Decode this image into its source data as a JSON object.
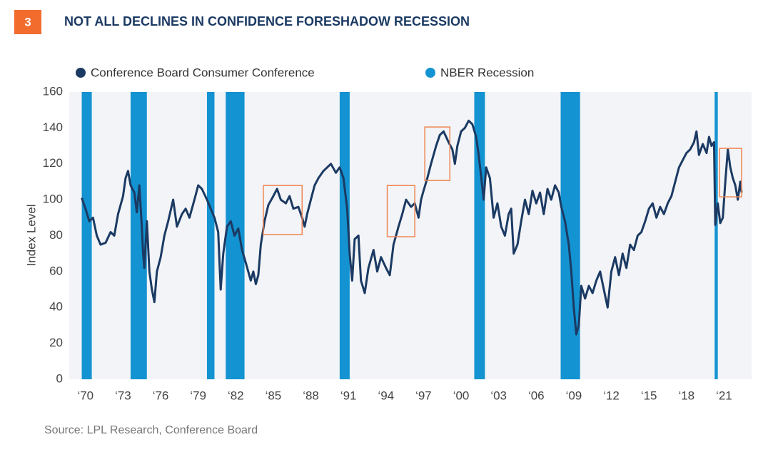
{
  "chart_data": {
    "type": "line",
    "figure_number": "3",
    "title": "NOT ALL DECLINES IN CONFIDENCE FORESHADOW RECESSION",
    "y_label": "Index Level",
    "source": "Source: LPL Research, Conference Board",
    "xlim": [
      1968.7,
      2023.2
    ],
    "ylim": [
      0,
      160
    ],
    "yticks": [
      0,
      20,
      40,
      60,
      80,
      100,
      120,
      140,
      160
    ],
    "xticks": [
      {
        "value": 1970,
        "label": "‘70"
      },
      {
        "value": 1973,
        "label": "‘73"
      },
      {
        "value": 1976,
        "label": "‘76"
      },
      {
        "value": 1979,
        "label": "‘79"
      },
      {
        "value": 1982,
        "label": "‘82"
      },
      {
        "value": 1985,
        "label": "‘85"
      },
      {
        "value": 1988,
        "label": "‘88"
      },
      {
        "value": 1991,
        "label": "‘91"
      },
      {
        "value": 1994,
        "label": "‘94"
      },
      {
        "value": 1997,
        "label": "‘97"
      },
      {
        "value": 2000,
        "label": "‘00"
      },
      {
        "value": 2003,
        "label": "‘03"
      },
      {
        "value": 2006,
        "label": "‘06"
      },
      {
        "value": 2009,
        "label": "‘09"
      },
      {
        "value": 2012,
        "label": "‘12"
      },
      {
        "value": 2015,
        "label": "‘15"
      },
      {
        "value": 2018,
        "label": "‘18"
      },
      {
        "value": 2021,
        "label": "‘21"
      }
    ],
    "grid": false,
    "x": [
      1969.7,
      1970.0,
      1970.3,
      1970.6,
      1970.9,
      1971.2,
      1971.6,
      1972.0,
      1972.3,
      1972.6,
      1973.0,
      1973.2,
      1973.4,
      1973.6,
      1973.9,
      1974.1,
      1974.3,
      1974.5,
      1974.6,
      1974.7,
      1974.9,
      1975.1,
      1975.3,
      1975.5,
      1975.7,
      1976.0,
      1976.3,
      1976.6,
      1977.0,
      1977.3,
      1977.7,
      1978.0,
      1978.3,
      1978.7,
      1979.0,
      1979.3,
      1979.7,
      1980.0,
      1980.3,
      1980.6,
      1980.8,
      1981.0,
      1981.3,
      1981.6,
      1981.9,
      1982.2,
      1982.5,
      1982.8,
      1983.0,
      1983.2,
      1983.4,
      1983.6,
      1983.8,
      1984.0,
      1984.3,
      1984.6,
      1985.0,
      1985.3,
      1985.6,
      1986.0,
      1986.3,
      1986.6,
      1987.0,
      1987.3,
      1987.5,
      1987.7,
      1988.0,
      1988.3,
      1988.6,
      1989.0,
      1989.3,
      1989.6,
      1990.0,
      1990.3,
      1990.6,
      1990.9,
      1991.1,
      1991.3,
      1991.5,
      1991.8,
      1992.0,
      1992.3,
      1992.6,
      1993.0,
      1993.3,
      1993.6,
      1994.0,
      1994.3,
      1994.6,
      1995.0,
      1995.3,
      1995.6,
      1996.0,
      1996.3,
      1996.6,
      1996.8,
      1997.0,
      1997.3,
      1997.6,
      1998.0,
      1998.3,
      1998.6,
      1999.0,
      1999.3,
      1999.5,
      1999.7,
      2000.0,
      2000.3,
      2000.6,
      2000.9,
      2001.2,
      2001.4,
      2001.6,
      2001.8,
      2002.0,
      2002.3,
      2002.6,
      2002.9,
      2003.2,
      2003.5,
      2003.8,
      2004.0,
      2004.2,
      2004.5,
      2004.8,
      2005.1,
      2005.4,
      2005.7,
      2006.0,
      2006.3,
      2006.6,
      2006.9,
      2007.2,
      2007.5,
      2007.8,
      2008.0,
      2008.3,
      2008.6,
      2008.8,
      2009.0,
      2009.2,
      2009.4,
      2009.6,
      2009.9,
      2010.2,
      2010.5,
      2010.8,
      2011.1,
      2011.4,
      2011.7,
      2012.0,
      2012.3,
      2012.6,
      2012.9,
      2013.2,
      2013.5,
      2013.8,
      2014.1,
      2014.4,
      2014.7,
      2015.0,
      2015.3,
      2015.6,
      2015.9,
      2016.2,
      2016.5,
      2016.8,
      2017.1,
      2017.4,
      2017.7,
      2018.0,
      2018.3,
      2018.6,
      2018.8,
      2019.0,
      2019.3,
      2019.6,
      2019.8,
      2020.0,
      2020.2,
      2020.3,
      2020.5,
      2020.7,
      2020.9,
      2021.1,
      2021.3,
      2021.5,
      2021.7,
      2021.9,
      2022.1,
      2022.3,
      2022.4
    ],
    "series": [
      {
        "name": "Conference Board Consumer Conference",
        "color": "#1b3a63",
        "values": [
          101,
          95,
          88,
          90,
          80,
          75,
          76,
          82,
          80,
          92,
          102,
          112,
          116,
          108,
          104,
          93,
          108,
          85,
          70,
          62,
          88,
          60,
          50,
          43,
          60,
          68,
          80,
          88,
          100,
          85,
          92,
          95,
          90,
          100,
          108,
          106,
          100,
          95,
          90,
          82,
          50,
          70,
          85,
          88,
          80,
          84,
          72,
          65,
          60,
          55,
          60,
          53,
          58,
          75,
          88,
          97,
          102,
          106,
          100,
          98,
          102,
          95,
          96,
          90,
          85,
          92,
          100,
          108,
          112,
          116,
          118,
          120,
          115,
          118,
          112,
          95,
          70,
          55,
          78,
          80,
          55,
          48,
          62,
          72,
          60,
          68,
          62,
          58,
          75,
          85,
          92,
          100,
          96,
          98,
          90,
          100,
          105,
          112,
          120,
          130,
          136,
          138,
          132,
          128,
          120,
          130,
          138,
          140,
          144,
          142,
          135,
          125,
          113,
          100,
          118,
          112,
          90,
          98,
          85,
          80,
          92,
          95,
          70,
          75,
          88,
          100,
          92,
          105,
          98,
          104,
          92,
          106,
          100,
          108,
          104,
          96,
          88,
          75,
          60,
          40,
          25,
          30,
          52,
          45,
          52,
          48,
          55,
          60,
          50,
          40,
          60,
          68,
          58,
          70,
          62,
          75,
          72,
          80,
          82,
          88,
          95,
          98,
          90,
          96,
          92,
          98,
          102,
          110,
          118,
          122,
          126,
          128,
          132,
          138,
          125,
          131,
          126,
          135,
          130,
          132,
          86,
          98,
          87,
          90,
          110,
          128,
          118,
          112,
          108,
          100,
          110,
          104
        ]
      },
      {
        "name": "NBER Recession",
        "color": "#1393d1",
        "ranges": [
          [
            1969.7,
            1970.5
          ],
          [
            1973.6,
            1974.9
          ],
          [
            1979.7,
            1980.3
          ],
          [
            1981.2,
            1982.7
          ],
          [
            1990.3,
            1991.1
          ],
          [
            2001.05,
            2001.9
          ],
          [
            2007.95,
            2009.5
          ],
          [
            2020.25,
            2020.5
          ]
        ]
      }
    ],
    "highlight_color": "#f08552",
    "highlight_boxes": [
      {
        "x": [
          1984.2,
          1987.3
        ],
        "y": [
          80.6,
          107.9
        ]
      },
      {
        "x": [
          1994.1,
          1996.3
        ],
        "y": [
          79.4,
          107.9
        ]
      },
      {
        "x": [
          1997.1,
          1999.1
        ],
        "y": [
          110.7,
          140.5
        ]
      },
      {
        "x": [
          2020.65,
          2022.4
        ],
        "y": [
          101.6,
          128.6
        ]
      }
    ]
  }
}
